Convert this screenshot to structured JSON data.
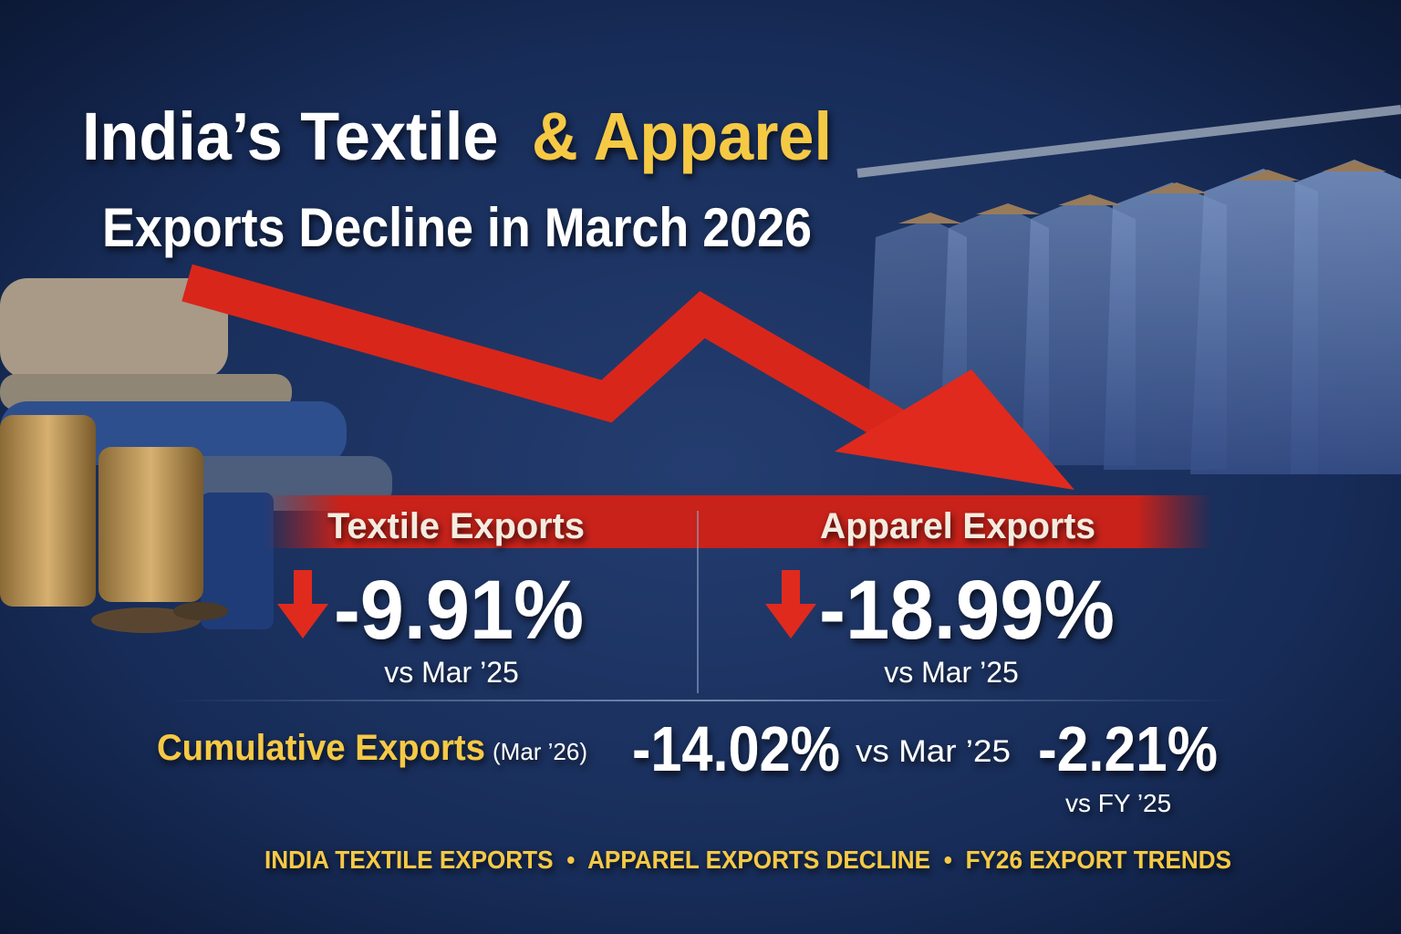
{
  "title": {
    "part1": "India’s Textile",
    "part2": "& Apparel",
    "line2": "Exports Decline in March 2026"
  },
  "cards": [
    {
      "label": "Textile Exports",
      "value": "-9.91%",
      "comparison": "vs Mar ’25"
    },
    {
      "label": "Apparel Exports",
      "value": "-18.99%",
      "comparison": "vs Mar ’25"
    }
  ],
  "cumulative": {
    "label": "Cumulative Exports",
    "period": "(Mar ’26)",
    "value1": "-14.02%",
    "comparison1": "vs Mar ’25",
    "value2": "-2.21%",
    "comparison2": "vs FY ’25"
  },
  "footer": {
    "tags": [
      "INDIA TEXTILE EXPORTS",
      "APPAREL EXPORTS DECLINE",
      "FY26 EXPORT TRENDS"
    ],
    "separator": "•"
  }
}
